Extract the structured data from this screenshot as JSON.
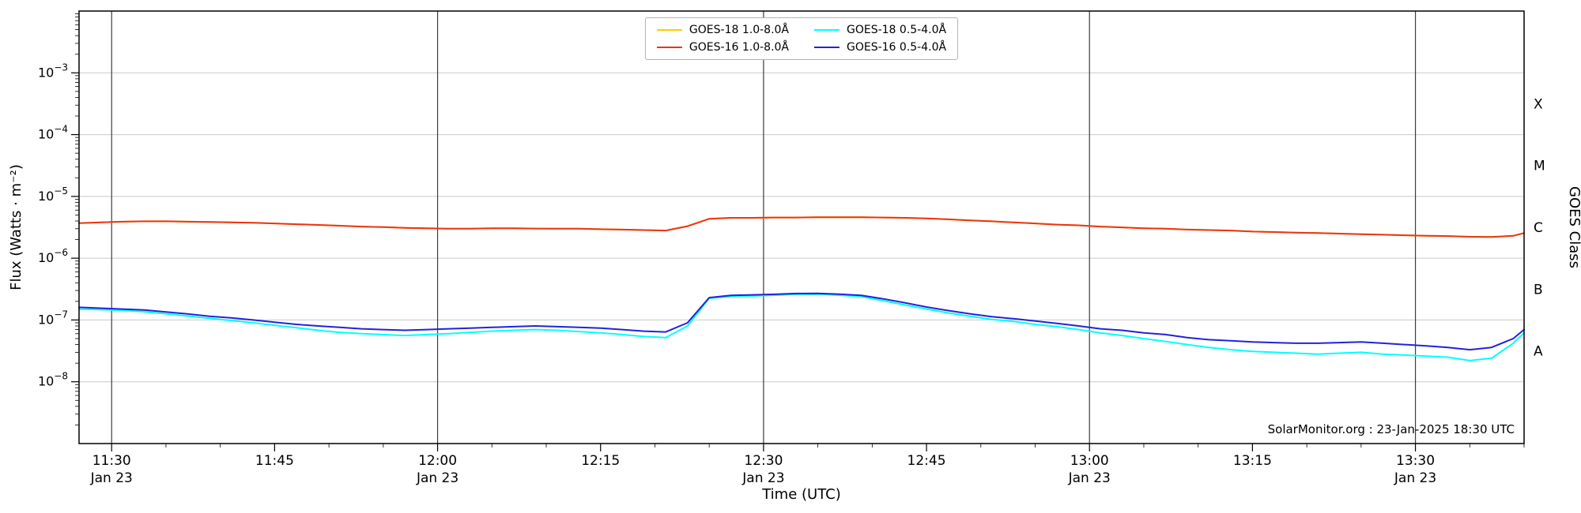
{
  "chart_data": {
    "type": "line",
    "title": "",
    "xlabel": "Time (UTC)",
    "ylabel": "Flux (Watts · m⁻²)",
    "ylabel_right": "GOES Class",
    "watermark": "SolarMonitor.org : 23-Jan-2025 18:30 UTC",
    "grid": {
      "horizontal_decades": true,
      "vertical_date_lines": true
    },
    "legend_position": "top-center",
    "x_range_minutes": [
      687,
      820
    ],
    "y_log_range": [
      -9,
      -2
    ],
    "x_minor_step_minutes": 5,
    "x_ticks": [
      {
        "min": 690,
        "label": "11:30",
        "date": "Jan 23"
      },
      {
        "min": 705,
        "label": "11:45"
      },
      {
        "min": 720,
        "label": "12:00",
        "date": "Jan 23"
      },
      {
        "min": 735,
        "label": "12:15"
      },
      {
        "min": 750,
        "label": "12:30",
        "date": "Jan 23"
      },
      {
        "min": 765,
        "label": "12:45"
      },
      {
        "min": 780,
        "label": "13:00",
        "date": "Jan 23"
      },
      {
        "min": 795,
        "label": "13:15"
      },
      {
        "min": 810,
        "label": "13:30",
        "date": "Jan 23"
      }
    ],
    "y_ticks": [
      {
        "exp": -3,
        "label": "10⁻³"
      },
      {
        "exp": -4,
        "label": "10⁻⁴"
      },
      {
        "exp": -5,
        "label": "10⁻⁵"
      },
      {
        "exp": -6,
        "label": "10⁻⁶"
      },
      {
        "exp": -7,
        "label": "10⁻⁷"
      },
      {
        "exp": -8,
        "label": "10⁻⁸"
      }
    ],
    "goes_classes": [
      {
        "label": "X",
        "exp": -4
      },
      {
        "label": "M",
        "exp": -5
      },
      {
        "label": "C",
        "exp": -6
      },
      {
        "label": "B",
        "exp": -7
      },
      {
        "label": "A",
        "exp": -8
      }
    ],
    "time_minutes": [
      687,
      689,
      691,
      693,
      695,
      697,
      699,
      701,
      703,
      705,
      707,
      709,
      711,
      713,
      715,
      717,
      719,
      721,
      723,
      725,
      727,
      729,
      731,
      733,
      735,
      737,
      739,
      741,
      743,
      745,
      747,
      749,
      751,
      753,
      755,
      757,
      759,
      761,
      763,
      765,
      767,
      769,
      771,
      773,
      775,
      777,
      779,
      781,
      783,
      785,
      787,
      789,
      791,
      793,
      795,
      797,
      799,
      801,
      803,
      805,
      807,
      809,
      811,
      813,
      815,
      817,
      819,
      820
    ],
    "series": [
      {
        "id": "goes18_long",
        "name": "GOES-18 1.0-8.0Å",
        "color": "#ffcc00",
        "values": [
          3.7e-06,
          3.8e-06,
          3.9e-06,
          3.95e-06,
          3.95e-06,
          3.9e-06,
          3.85e-06,
          3.8e-06,
          3.75e-06,
          3.65e-06,
          3.55e-06,
          3.45e-06,
          3.35e-06,
          3.25e-06,
          3.18e-06,
          3.1e-06,
          3.05e-06,
          3e-06,
          3e-06,
          3.05e-06,
          3.05e-06,
          3.02e-06,
          3e-06,
          3e-06,
          2.95e-06,
          2.9e-06,
          2.85e-06,
          2.8e-06,
          3.3e-06,
          4.35e-06,
          4.5e-06,
          4.5e-06,
          4.55e-06,
          4.55e-06,
          4.6e-06,
          4.6e-06,
          4.6e-06,
          4.55e-06,
          4.5e-06,
          4.4e-06,
          4.25e-06,
          4.1e-06,
          3.95e-06,
          3.8e-06,
          3.65e-06,
          3.5e-06,
          3.4e-06,
          3.25e-06,
          3.15e-06,
          3.05e-06,
          3e-06,
          2.9e-06,
          2.85e-06,
          2.8e-06,
          2.7e-06,
          2.65e-06,
          2.6e-06,
          2.55e-06,
          2.5e-06,
          2.45e-06,
          2.4e-06,
          2.35e-06,
          2.3e-06,
          2.28e-06,
          2.22e-06,
          2.2e-06,
          2.3e-06,
          2.55e-06
        ]
      },
      {
        "id": "goes16_long",
        "name": "GOES-16 1.0-8.0Å",
        "color": "#ee3311",
        "values": [
          3.7e-06,
          3.8e-06,
          3.9e-06,
          3.95e-06,
          3.95e-06,
          3.9e-06,
          3.85e-06,
          3.8e-06,
          3.75e-06,
          3.65e-06,
          3.55e-06,
          3.45e-06,
          3.35e-06,
          3.25e-06,
          3.18e-06,
          3.1e-06,
          3.05e-06,
          3e-06,
          3e-06,
          3.05e-06,
          3.05e-06,
          3.02e-06,
          3e-06,
          3e-06,
          2.95e-06,
          2.9e-06,
          2.85e-06,
          2.8e-06,
          3.3e-06,
          4.35e-06,
          4.5e-06,
          4.5e-06,
          4.55e-06,
          4.55e-06,
          4.6e-06,
          4.6e-06,
          4.6e-06,
          4.55e-06,
          4.5e-06,
          4.4e-06,
          4.25e-06,
          4.1e-06,
          3.95e-06,
          3.8e-06,
          3.65e-06,
          3.5e-06,
          3.4e-06,
          3.25e-06,
          3.15e-06,
          3.05e-06,
          3e-06,
          2.9e-06,
          2.85e-06,
          2.8e-06,
          2.7e-06,
          2.65e-06,
          2.6e-06,
          2.55e-06,
          2.5e-06,
          2.45e-06,
          2.4e-06,
          2.35e-06,
          2.3e-06,
          2.28e-06,
          2.22e-06,
          2.2e-06,
          2.3e-06,
          2.55e-06
        ]
      },
      {
        "id": "goes18_short",
        "name": "GOES-18 0.5-4.0Å",
        "color": "#00ffff",
        "values": [
          1.5e-07,
          1.47e-07,
          1.43e-07,
          1.36e-07,
          1.26e-07,
          1.16e-07,
          1.06e-07,
          9.8e-08,
          9e-08,
          8.2e-08,
          7.5e-08,
          6.8e-08,
          6.3e-08,
          6e-08,
          5.8e-08,
          5.6e-08,
          5.8e-08,
          6e-08,
          6.3e-08,
          6.6e-08,
          6.8e-08,
          7e-08,
          6.8e-08,
          6.5e-08,
          6.2e-08,
          5.8e-08,
          5.4e-08,
          5.2e-08,
          8e-08,
          2.25e-07,
          2.4e-07,
          2.45e-07,
          2.52e-07,
          2.6e-07,
          2.62e-07,
          2.52e-07,
          2.38e-07,
          2.05e-07,
          1.75e-07,
          1.5e-07,
          1.3e-07,
          1.15e-07,
          1.02e-07,
          9.5e-08,
          8.5e-08,
          7.8e-08,
          7e-08,
          6.2e-08,
          5.6e-08,
          5e-08,
          4.5e-08,
          4e-08,
          3.6e-08,
          3.3e-08,
          3.1e-08,
          3e-08,
          2.9e-08,
          2.8e-08,
          2.9e-08,
          3e-08,
          2.8e-08,
          2.7e-08,
          2.6e-08,
          2.5e-08,
          2.2e-08,
          2.4e-08,
          4.2e-08,
          6.2e-08
        ]
      },
      {
        "id": "goes16_short",
        "name": "GOES-16 0.5-4.0Å",
        "color": "#2222dd",
        "values": [
          1.6e-07,
          1.55e-07,
          1.5e-07,
          1.45e-07,
          1.35e-07,
          1.25e-07,
          1.15e-07,
          1.08e-07,
          1e-07,
          9.2e-08,
          8.5e-08,
          8e-08,
          7.6e-08,
          7.2e-08,
          7e-08,
          6.8e-08,
          7e-08,
          7.2e-08,
          7.4e-08,
          7.6e-08,
          7.8e-08,
          8e-08,
          7.8e-08,
          7.6e-08,
          7.4e-08,
          7e-08,
          6.6e-08,
          6.4e-08,
          9e-08,
          2.3e-07,
          2.5e-07,
          2.55e-07,
          2.6e-07,
          2.68e-07,
          2.7e-07,
          2.62e-07,
          2.5e-07,
          2.2e-07,
          1.9e-07,
          1.62e-07,
          1.42e-07,
          1.26e-07,
          1.13e-07,
          1.05e-07,
          9.6e-08,
          8.8e-08,
          8e-08,
          7.2e-08,
          6.8e-08,
          6.2e-08,
          5.8e-08,
          5.2e-08,
          4.8e-08,
          4.6e-08,
          4.4e-08,
          4.3e-08,
          4.2e-08,
          4.2e-08,
          4.3e-08,
          4.4e-08,
          4.2e-08,
          4e-08,
          3.8e-08,
          3.6e-08,
          3.3e-08,
          3.6e-08,
          5e-08,
          7e-08
        ]
      }
    ]
  }
}
